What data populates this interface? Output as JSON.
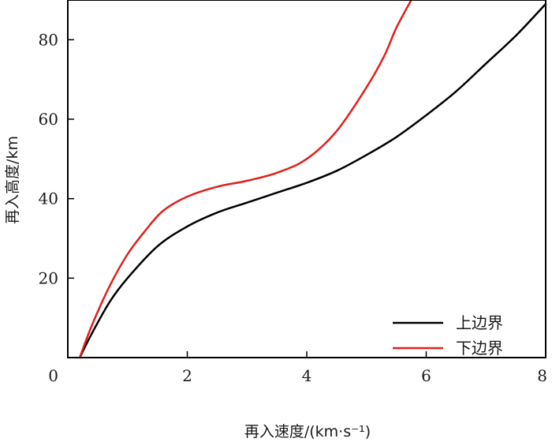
{
  "chart_data": {
    "type": "line",
    "title": "",
    "xlabel": "再入速度/(km·s⁻¹)",
    "ylabel": "再入高度/km",
    "xlim": [
      0,
      8
    ],
    "ylim": [
      0,
      90
    ],
    "xticks": [
      0,
      2,
      4,
      6,
      8
    ],
    "yticks": [
      20,
      40,
      60,
      80
    ],
    "grid": false,
    "legend_position": "bottom-right",
    "series": [
      {
        "name": "上边界",
        "color": "#000000",
        "x": [
          0.2,
          0.4,
          0.7,
          1.0,
          1.5,
          2.0,
          2.5,
          3.0,
          3.5,
          4.0,
          4.5,
          5.0,
          5.5,
          6.0,
          6.5,
          7.0,
          7.5,
          8.0
        ],
        "y": [
          0,
          6,
          14,
          20,
          28,
          33,
          36.5,
          39,
          41.5,
          44,
          47,
          51,
          55.5,
          61,
          67,
          74,
          81,
          89
        ]
      },
      {
        "name": "下边界",
        "color": "#e0201b",
        "x": [
          0.2,
          0.4,
          0.7,
          1.0,
          1.3,
          1.6,
          2.0,
          2.5,
          3.0,
          3.5,
          4.0,
          4.5,
          5.0,
          5.3,
          5.5,
          5.75
        ],
        "y": [
          0,
          8,
          18,
          26,
          32,
          37,
          40.5,
          43,
          44.5,
          46.5,
          50,
          57,
          68,
          76,
          83,
          90
        ]
      }
    ]
  }
}
